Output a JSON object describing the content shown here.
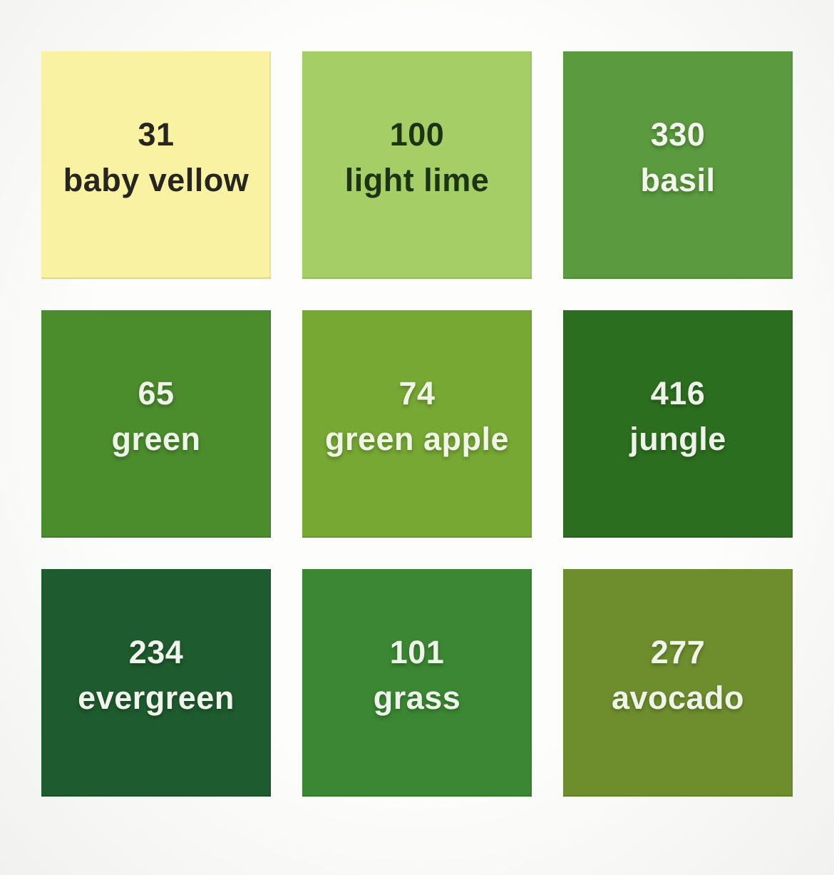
{
  "page": {
    "background_color": "#f6f6f4",
    "grid": {
      "rows": 3,
      "columns": 3
    }
  },
  "swatches": [
    {
      "number": "31",
      "name": "baby vellow",
      "color": "#f8f2a2",
      "text_color": "#26261f",
      "text_style": "dark"
    },
    {
      "number": "100",
      "name": "light lime",
      "color": "#a5ce67",
      "text_color": "#1c3411",
      "text_style": "dark"
    },
    {
      "number": "330",
      "name": "basil",
      "color": "#5b9a3e",
      "text_color": "#f3f6ec",
      "text_style": "light"
    },
    {
      "number": "65",
      "name": "green",
      "color": "#4b8c2d",
      "text_color": "#eff4e8",
      "text_style": "light"
    },
    {
      "number": "74",
      "name": "green apple",
      "color": "#76a833",
      "text_color": "#f1f5e6",
      "text_style": "light"
    },
    {
      "number": "416",
      "name": "jungle",
      "color": "#2c6e20",
      "text_color": "#edf3e6",
      "text_style": "light"
    },
    {
      "number": "234",
      "name": "evergreen",
      "color": "#1e5b2e",
      "text_color": "#f0f4ec",
      "text_style": "light"
    },
    {
      "number": "101",
      "name": "grass",
      "color": "#3b8733",
      "text_color": "#eff4ea",
      "text_style": "light"
    },
    {
      "number": "277",
      "name": "avocado",
      "color": "#6e8e2e",
      "text_color": "#f0f3e7",
      "text_style": "light"
    }
  ]
}
